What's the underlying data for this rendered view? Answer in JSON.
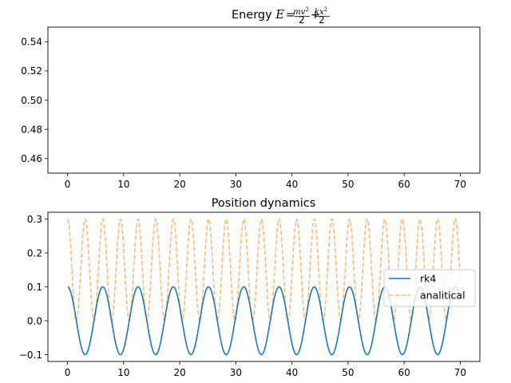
{
  "chart_data": [
    {
      "type": "line",
      "title": {
        "prefix": "Energy ",
        "e_var": "E",
        "equals": "=",
        "num1": "mv",
        "num2": "kx",
        "sup": "2",
        "den": "2",
        "plus": "+"
      },
      "xlim": [
        -3.5,
        73.5
      ],
      "ylim": [
        0.45,
        0.55
      ],
      "x_ticks": [
        0,
        10,
        20,
        30,
        40,
        50,
        60,
        70
      ],
      "y_ticks": [
        0.46,
        0.48,
        0.5,
        0.52,
        0.54
      ],
      "series": [],
      "grid": false
    },
    {
      "type": "line",
      "title": "Position dynamics",
      "xlim": [
        -3.5,
        73.5
      ],
      "ylim": [
        -0.12,
        0.32
      ],
      "x_ticks": [
        0,
        10,
        20,
        30,
        40,
        50,
        60,
        70
      ],
      "y_ticks": [
        -0.1,
        0.0,
        0.1,
        0.2,
        0.3
      ],
      "grid": false,
      "legend_position": "center-right",
      "series": [
        {
          "name": "rk4",
          "color": "#1f77b4",
          "style": "solid",
          "function": "0.1*cos(t)",
          "t_range": [
            0,
            70
          ]
        },
        {
          "name": "analitical",
          "color": "#ff7f0e",
          "style": "dashed",
          "function": "0.3*cos(t)^2",
          "t_range": [
            0,
            70
          ]
        }
      ]
    }
  ]
}
